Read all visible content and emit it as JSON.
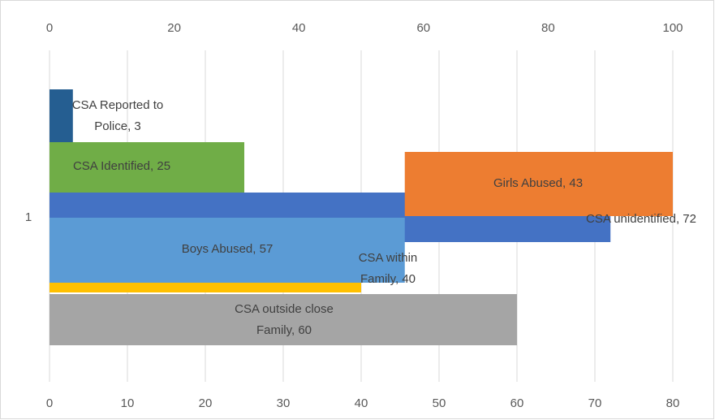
{
  "chart_data": {
    "type": "bar",
    "orientation": "horizontal",
    "categories": [
      "1"
    ],
    "xlim": [
      0,
      80
    ],
    "xticks": [
      0,
      10,
      20,
      30,
      40,
      50,
      60,
      70,
      80
    ],
    "x2lim": [
      0,
      100
    ],
    "x2ticks": [
      0,
      20,
      40,
      60,
      80,
      100
    ],
    "grid": true,
    "series": [
      {
        "name": "CSA Reported to Police",
        "color": "#255e91",
        "values": [
          3
        ],
        "value_labels": [
          "CSA Reported to Police, 3"
        ]
      },
      {
        "name": "CSA Identified",
        "color": "#70ad47",
        "values": [
          25
        ],
        "value_labels": [
          "CSA Identified, 25"
        ]
      },
      {
        "name": "CSA unidentified",
        "color": "#4472c4",
        "values": [
          72
        ],
        "value_labels": [
          "CSA unidentified, 72"
        ]
      },
      {
        "name": "CSA within Family",
        "color": "#ffc000",
        "values": [
          40
        ],
        "value_labels": [
          "CSA within Family, 40"
        ]
      },
      {
        "name": "CSA outside close Family",
        "color": "#a5a5a5",
        "values": [
          60
        ],
        "value_labels": [
          "CSA outside close Family, 60"
        ]
      },
      {
        "name": "Boys Abused",
        "color": "#5b9bd5",
        "values": [
          57
        ],
        "axis": "x2",
        "stacked": true,
        "value_labels": [
          "Boys Abused, 57"
        ]
      },
      {
        "name": "Girls Abused",
        "color": "#ed7d31",
        "values": [
          43
        ],
        "axis": "x2",
        "stacked": true,
        "value_labels": [
          "Girls Abused, 43"
        ]
      }
    ]
  }
}
